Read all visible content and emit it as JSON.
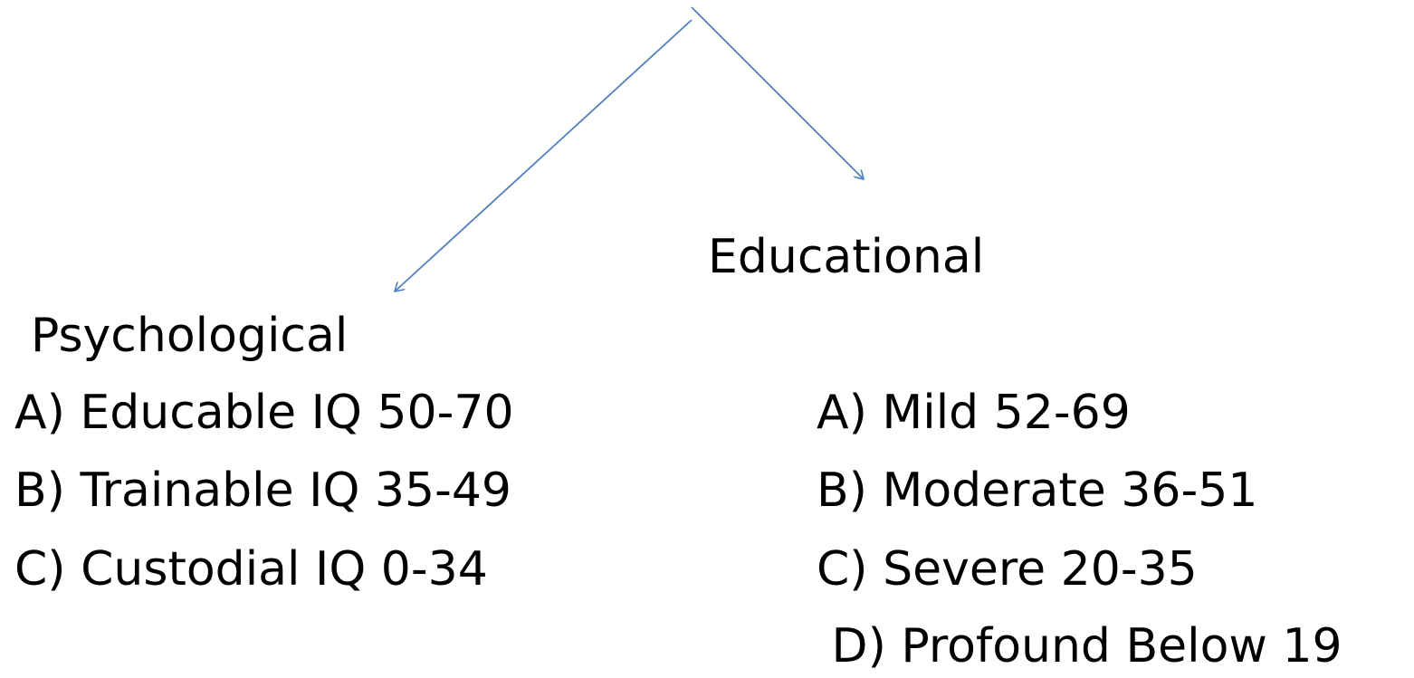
{
  "colors": {
    "arrow": "#4f81bd",
    "text": "#000000",
    "background": "#ffffff"
  },
  "branches": {
    "left": {
      "title": "Psychological",
      "items": [
        "A)  Educable IQ 50-70",
        "B) Trainable  IQ 35-49",
        "C) Custodial IQ 0-34"
      ]
    },
    "right": {
      "title": "Educational",
      "items": [
        "A) Mild  52-69",
        "B) Moderate 36-51",
        "C) Severe 20-35",
        " D) Profound Below 19"
      ]
    }
  }
}
